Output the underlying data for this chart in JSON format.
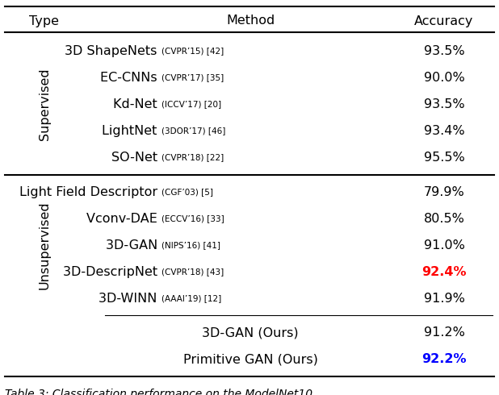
{
  "title": "Table 3: Classification performance on the ModelNet10",
  "header": [
    "Type",
    "Method",
    "Accuracy"
  ],
  "supervised_rows": [
    {
      "method": "3D ShapeNets",
      "venue": "(CVPR’15)",
      "ref": "[42]",
      "accuracy": "93.5%",
      "acc_color": "black",
      "acc_bold": false
    },
    {
      "method": "EC-CNNs",
      "venue": "(CVPR’17)",
      "ref": "[35]",
      "accuracy": "90.0%",
      "acc_color": "black",
      "acc_bold": false
    },
    {
      "method": "Kd-Net",
      "venue": "(ICCV’17)",
      "ref": "[20]",
      "accuracy": "93.5%",
      "acc_color": "black",
      "acc_bold": false
    },
    {
      "method": "LightNet",
      "venue": "(3DOR’17)",
      "ref": "[46]",
      "accuracy": "93.4%",
      "acc_color": "black",
      "acc_bold": false
    },
    {
      "method": "SO-Net",
      "venue": "(CVPR’18)",
      "ref": "[22]",
      "accuracy": "95.5%",
      "acc_color": "black",
      "acc_bold": false
    }
  ],
  "unsupervised_rows": [
    {
      "method": "Light Field Descriptor",
      "venue": "(CGF’03)",
      "ref": "[5]",
      "accuracy": "79.9%",
      "acc_color": "black",
      "acc_bold": false
    },
    {
      "method": "Vconv-DAE",
      "venue": "(ECCV’16)",
      "ref": "[33]",
      "accuracy": "80.5%",
      "acc_color": "black",
      "acc_bold": false
    },
    {
      "method": "3D-GAN",
      "venue": "(NIPS’16)",
      "ref": "[41]",
      "accuracy": "91.0%",
      "acc_color": "black",
      "acc_bold": false
    },
    {
      "method": "3D-DescripNet",
      "venue": "(CVPR’18)",
      "ref": "[43]",
      "accuracy": "92.4%",
      "acc_color": "red",
      "acc_bold": true
    },
    {
      "method": "3D-WINN",
      "venue": "(AAAI’19)",
      "ref": "[12]",
      "accuracy": "91.9%",
      "acc_color": "black",
      "acc_bold": false
    }
  ],
  "ours_rows": [
    {
      "method": "3D-GAN (Ours)",
      "venue": "",
      "ref": "",
      "accuracy": "91.2%",
      "acc_color": "black",
      "acc_bold": false
    },
    {
      "method": "Primitive GAN (Ours)",
      "venue": "",
      "ref": "",
      "accuracy": "92.2%",
      "acc_color": "blue",
      "acc_bold": true
    }
  ],
  "bg_color": "#ffffff",
  "font_size": 11.5,
  "small_font_size": 7.5,
  "caption_font_size": 10
}
